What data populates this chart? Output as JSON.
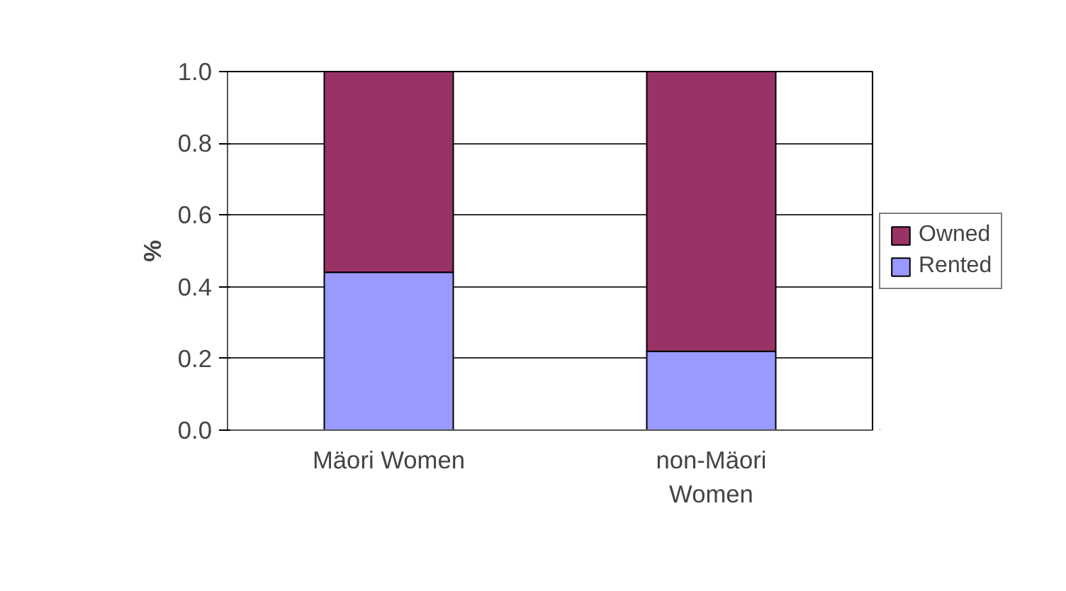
{
  "chart_data": {
    "type": "bar",
    "stacked": true,
    "ylabel": "%",
    "categories": [
      "Mäori Women",
      "non-Mäori Women"
    ],
    "series": [
      {
        "name": "Rented",
        "color": "#9999ff",
        "values": [
          0.44,
          0.22
        ]
      },
      {
        "name": "Owned",
        "color": "#993366",
        "values": [
          0.56,
          0.78
        ]
      }
    ],
    "ylim": [
      0,
      1.0
    ],
    "yticks": [
      {
        "value": 0,
        "label": "0.0"
      },
      {
        "value": 0.2,
        "label": "0.2"
      },
      {
        "value": 0.4,
        "label": "0.4"
      },
      {
        "value": 0.6,
        "label": "0.6"
      },
      {
        "value": 0.8,
        "label": "0.8"
      },
      {
        "value": 1.0,
        "label": "1.0"
      }
    ],
    "grid": "y",
    "legend": "right"
  }
}
